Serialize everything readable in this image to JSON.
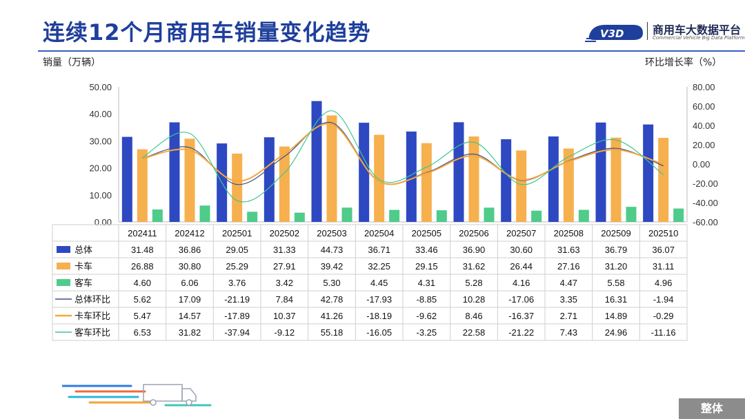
{
  "title": "连续12个月商用车销量变化趋势",
  "logo": {
    "mark": "V3D",
    "name": "商用车大数据平台",
    "sub": "Commercial Vehicle Big Data Platform"
  },
  "left_axis_label": "销量（万辆）",
  "right_axis_label": "环比增长率（%）",
  "footer_tab": "整体",
  "colors": {
    "zongti": "#2e48c2",
    "kache": "#f6b04e",
    "keche": "#4fcb8a",
    "title": "#1f3f9c"
  },
  "chart_data": {
    "type": "bar",
    "categories": [
      "202411",
      "202412",
      "202501",
      "202502",
      "202503",
      "202504",
      "202505",
      "202506",
      "202507",
      "202508",
      "202509",
      "202510"
    ],
    "ylim": [
      0,
      50
    ],
    "yticks": [
      "0.00",
      "10.00",
      "20.00",
      "30.00",
      "40.00",
      "50.00"
    ],
    "y2lim": [
      -60,
      80
    ],
    "y2ticks": [
      "-60.00",
      "-40.00",
      "-20.00",
      "0.00",
      "20.00",
      "40.00",
      "60.00",
      "80.00"
    ],
    "series": [
      {
        "name": "总体",
        "type": "bar",
        "axis": "left",
        "color": "#2e48c2",
        "values": [
          31.48,
          36.86,
          29.05,
          31.33,
          44.73,
          36.71,
          33.46,
          36.9,
          30.6,
          31.63,
          36.79,
          36.07
        ]
      },
      {
        "name": "卡车",
        "type": "bar",
        "axis": "left",
        "color": "#f6b04e",
        "values": [
          26.88,
          30.8,
          25.29,
          27.91,
          39.42,
          32.25,
          29.15,
          31.62,
          26.44,
          27.16,
          31.2,
          31.11
        ]
      },
      {
        "name": "客车",
        "type": "bar",
        "axis": "left",
        "color": "#4fcb8a",
        "values": [
          4.6,
          6.06,
          3.76,
          3.42,
          5.3,
          4.45,
          4.31,
          5.28,
          4.16,
          4.47,
          5.58,
          4.96
        ]
      },
      {
        "name": "总体环比",
        "type": "line",
        "axis": "right",
        "color": "#3b4f8f",
        "values": [
          5.62,
          17.09,
          -21.19,
          7.84,
          42.78,
          -17.93,
          -8.85,
          10.28,
          -17.06,
          3.35,
          16.31,
          -1.94
        ]
      },
      {
        "name": "卡车环比",
        "type": "line",
        "axis": "right",
        "color": "#f6a73c",
        "values": [
          5.47,
          14.57,
          -17.89,
          10.37,
          41.26,
          -18.19,
          -9.62,
          8.46,
          -16.37,
          2.71,
          14.89,
          -0.29
        ]
      },
      {
        "name": "客车环比",
        "type": "line",
        "axis": "right",
        "color": "#3fc78f",
        "values": [
          6.53,
          31.82,
          -37.94,
          -9.12,
          55.18,
          -16.05,
          -3.25,
          22.58,
          -21.22,
          7.43,
          24.96,
          -11.16
        ]
      }
    ],
    "table_rows": [
      {
        "label": "总体",
        "cells": [
          "31.48",
          "36.86",
          "29.05",
          "31.33",
          "44.73",
          "36.71",
          "33.46",
          "36.90",
          "30.60",
          "31.63",
          "36.79",
          "36.07"
        ]
      },
      {
        "label": "卡车",
        "cells": [
          "26.88",
          "30.80",
          "25.29",
          "27.91",
          "39.42",
          "32.25",
          "29.15",
          "31.62",
          "26.44",
          "27.16",
          "31.20",
          "31.11"
        ]
      },
      {
        "label": "客车",
        "cells": [
          "4.60",
          "6.06",
          "3.76",
          "3.42",
          "5.30",
          "4.45",
          "4.31",
          "5.28",
          "4.16",
          "4.47",
          "5.58",
          "4.96"
        ]
      },
      {
        "label": "总体环比",
        "cells": [
          "5.62",
          "17.09",
          "-21.19",
          "7.84",
          "42.78",
          "-17.93",
          "-8.85",
          "10.28",
          "-17.06",
          "3.35",
          "16.31",
          "-1.94"
        ]
      },
      {
        "label": "卡车环比",
        "cells": [
          "5.47",
          "14.57",
          "-17.89",
          "10.37",
          "41.26",
          "-18.19",
          "-9.62",
          "8.46",
          "-16.37",
          "2.71",
          "14.89",
          "-0.29"
        ]
      },
      {
        "label": "客车环比",
        "cells": [
          "6.53",
          "31.82",
          "-37.94",
          "-9.12",
          "55.18",
          "-16.05",
          "-3.25",
          "22.58",
          "-21.22",
          "7.43",
          "24.96",
          "-11.16"
        ]
      }
    ],
    "grid": false,
    "legend": "table-left"
  }
}
